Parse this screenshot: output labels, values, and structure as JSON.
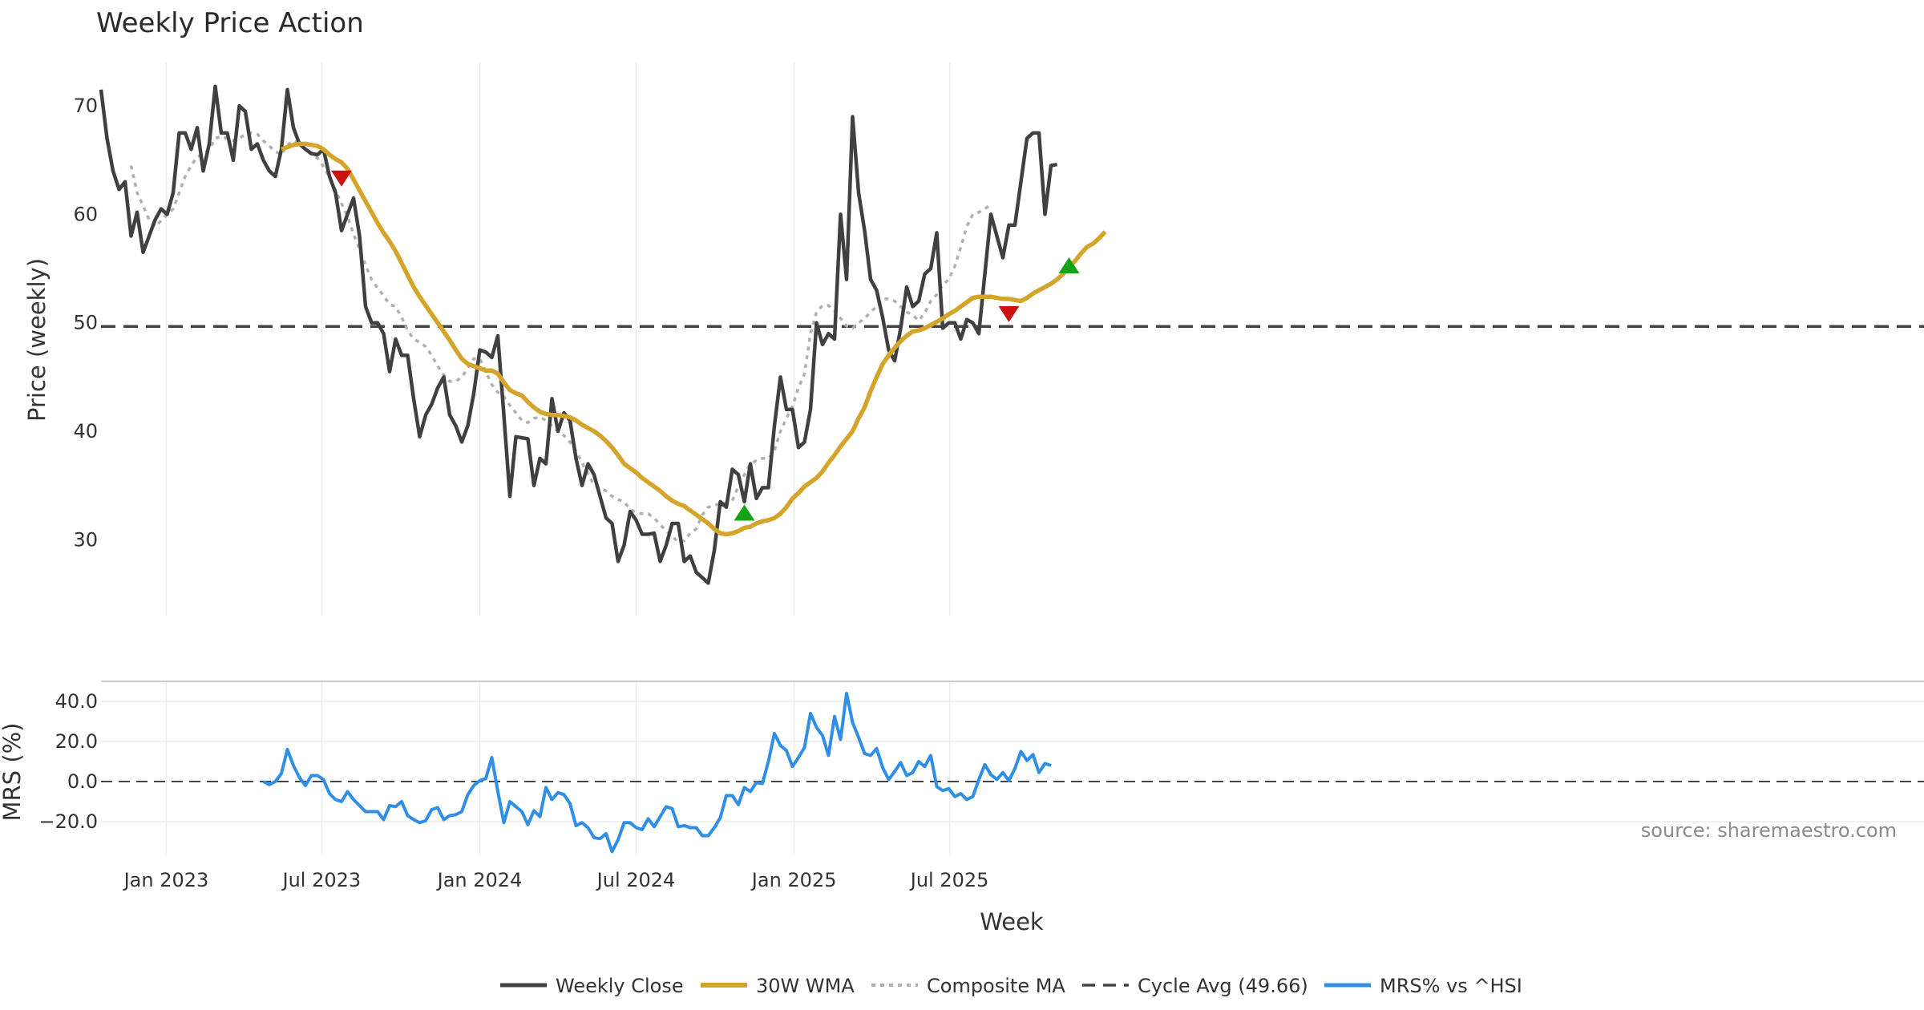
{
  "chart_data": {
    "type": "line",
    "title": "Weekly Price Action",
    "xlabel": "Week",
    "x_ticks": [
      "Jan 2023",
      "Jul 2023",
      "Jan 2024",
      "Jul 2024",
      "Jan 2025",
      "Jul 2025"
    ],
    "colors": {
      "close": "#404040",
      "wma": "#d4a52a",
      "composite": "#b0b0b0",
      "cycle": "#444444",
      "mrs": "#2f8fe6",
      "buy_marker": "#17a317",
      "sell_marker": "#cc1111"
    },
    "price_panel": {
      "ylabel": "Price (weekly)",
      "ylim": [
        23,
        74
      ],
      "yticks": [
        30,
        40,
        50,
        60,
        70
      ],
      "ytick_labels": [
        "30",
        "40",
        "50",
        "60",
        "70"
      ],
      "x_start": "2022-10-17",
      "weekly_close": [
        71.5,
        67.0,
        64.0,
        62.3,
        63.0,
        58.0,
        60.2,
        56.5,
        58.0,
        59.5,
        60.5,
        60.0,
        62.0,
        67.5,
        67.5,
        66.0,
        68.0,
        64.0,
        66.5,
        71.8,
        67.5,
        67.5,
        65.0,
        70.0,
        69.5,
        66.0,
        66.5,
        65.0,
        64.0,
        63.5,
        66.0,
        71.5,
        68.0,
        66.5,
        66.0,
        65.6,
        65.5,
        66.0,
        63.5,
        62.0,
        58.5,
        60.0,
        61.5,
        58.0,
        51.5,
        50.0,
        50.0,
        49.0,
        45.5,
        48.5,
        47.0,
        47.0,
        43.0,
        39.5,
        41.5,
        42.5,
        44.0,
        45.0,
        41.5,
        40.5,
        39.0,
        40.5,
        43.5,
        47.5,
        47.3,
        46.8,
        48.8,
        41.5,
        34.0,
        39.5,
        39.4,
        39.3,
        35.0,
        37.5,
        37.0,
        43.0,
        40.0,
        41.7,
        41.0,
        37.5,
        35.0,
        37.0,
        36.0,
        34.0,
        32.0,
        31.5,
        28.0,
        29.5,
        32.6,
        31.8,
        30.5,
        30.5,
        30.6,
        28.0,
        29.5,
        31.5,
        31.5,
        28.0,
        28.5,
        27.0,
        26.5,
        26.0,
        29.0,
        33.5,
        33.0,
        36.5,
        36.0,
        33.5,
        37.0,
        33.8,
        34.8,
        34.8,
        40.5,
        45.0,
        42.0,
        42.0,
        38.5,
        39.0,
        42.0,
        50.0,
        48.0,
        49.0,
        48.5,
        60.0,
        54.0,
        69.0,
        62.0,
        58.5,
        54.0,
        53.0,
        50.5,
        47.5,
        46.5,
        49.5,
        53.3,
        51.5,
        52.0,
        54.5,
        55.0,
        58.3,
        49.5,
        50.0,
        50.0,
        48.5,
        50.3,
        50.0,
        49.0,
        54.5,
        60.0,
        58.0,
        56.0,
        59.0,
        59.0,
        63.0,
        67.0,
        67.5,
        67.5,
        60.0,
        64.5,
        64.6
      ],
      "composite_ma_start_index": 5,
      "composite_ma": [
        64.5,
        62.0,
        60.8,
        59.5,
        58.9,
        59.4,
        60.0,
        60.5,
        62.0,
        63.5,
        64.5,
        65.3,
        65.5,
        66.0,
        67.0,
        67.2,
        67.0,
        66.8,
        67.0,
        67.4,
        67.5,
        67.4,
        66.8,
        66.3,
        65.8,
        65.5,
        66.4,
        66.8,
        66.5,
        66.0,
        65.5,
        65.2,
        64.4,
        63.4,
        62.2,
        61.0,
        59.8,
        58.2,
        56.8,
        55.3,
        54.0,
        53.2,
        52.5,
        51.7,
        51.5,
        50.5,
        49.3,
        48.5,
        48.2,
        47.8,
        47.0,
        46.0,
        45.2,
        44.6,
        44.6,
        45.0,
        45.8,
        46.7,
        46.7,
        45.5,
        44.3,
        43.6,
        43.2,
        42.4,
        41.7,
        41.0,
        40.8,
        41.2,
        41.3,
        41.0,
        40.5,
        40.0,
        39.6,
        39.0,
        38.2,
        37.1,
        36.1,
        35.0,
        34.8,
        34.5,
        34.0,
        33.7,
        33.5,
        32.8,
        32.5,
        32.4,
        32.4,
        32.0,
        31.4,
        30.8,
        30.3,
        29.8,
        29.9,
        30.6,
        31.0,
        32.3,
        33.0,
        33.2,
        33.3,
        33.4,
        33.6,
        34.9,
        36.0,
        37.0,
        37.3,
        37.5,
        37.5,
        38.2,
        40.0,
        41.2,
        42.3,
        44.0,
        45.3,
        49.0,
        51.0,
        51.6,
        51.6,
        51.1,
        50.4,
        49.7,
        49.5,
        50.0,
        50.4,
        51.0,
        51.5,
        52.2,
        52.2,
        52.0,
        51.5,
        51.0,
        50.7,
        50.2,
        50.9,
        52.0,
        52.6,
        53.5,
        54.0,
        55.2,
        57.0,
        58.9,
        60.0,
        60.2,
        60.5,
        60.9
      ]
    },
    "wma_30w": {
      "start_index": 30,
      "values": [
        66.0,
        66.2,
        66.4,
        66.5,
        66.5,
        66.4,
        66.3,
        66.0,
        65.5,
        65.1,
        64.8,
        64.2,
        63.2,
        62.2,
        61.2,
        60.2,
        59.2,
        58.3,
        57.5,
        56.6,
        55.5,
        54.4,
        53.3,
        52.4,
        51.6,
        50.8,
        50.0,
        49.2,
        48.4,
        47.5,
        46.7,
        46.2,
        46.0,
        45.8,
        45.6,
        45.6,
        45.3,
        44.5,
        43.8,
        43.5,
        43.3,
        42.7,
        42.2,
        41.8,
        41.6,
        41.5,
        41.5,
        41.4,
        41.3,
        41.0,
        40.6,
        40.3,
        40.0,
        39.6,
        39.1,
        38.5,
        37.8,
        37.0,
        36.6,
        36.2,
        35.7,
        35.3,
        34.9,
        34.5,
        34.0,
        33.6,
        33.3,
        33.1,
        32.7,
        32.3,
        31.9,
        31.5,
        31.0,
        30.6,
        30.5,
        30.6,
        30.8,
        31.1,
        31.2,
        31.5,
        31.7,
        31.8,
        32.0,
        32.4,
        33.0,
        33.8,
        34.3,
        34.9,
        35.3,
        35.7,
        36.3,
        37.1,
        37.8,
        38.6,
        39.3,
        40.0,
        41.2,
        42.2,
        43.7,
        45.0,
        46.2,
        47.0,
        47.7,
        48.3,
        48.8,
        49.2,
        49.3,
        49.5,
        49.8,
        50.1,
        50.4,
        50.8,
        51.1,
        51.5,
        51.9,
        52.3,
        52.4,
        52.4,
        52.4,
        52.3,
        52.2,
        52.2,
        52.1,
        52.0,
        52.3,
        52.7,
        53.0,
        53.3,
        53.6,
        54.0,
        54.5,
        55.1,
        55.7,
        56.4,
        57.0,
        57.3,
        57.8,
        58.4
      ]
    },
    "cycle_avg": {
      "value": 49.66,
      "label": "Cycle Avg (49.66)"
    },
    "markers": [
      {
        "type": "sell",
        "index": 40,
        "price": 63.3
      },
      {
        "type": "buy",
        "index": 107,
        "price": 32.5
      },
      {
        "type": "sell",
        "index": 151,
        "price": 50.8
      },
      {
        "type": "buy",
        "index": 161,
        "price": 55.3
      }
    ],
    "mrs_panel": {
      "ylabel": "MRS (%)",
      "ylim": [
        -36,
        50
      ],
      "yticks": [
        -20,
        0,
        20,
        40
      ],
      "ytick_labels": [
        "−20.0",
        "0.0",
        "20.0",
        "40.0"
      ],
      "start_index": 27,
      "values": [
        0.0,
        -1.5,
        0.0,
        4.0,
        16.0,
        8.0,
        2.0,
        -2.0,
        3.0,
        3.0,
        1.0,
        -6.0,
        -9.0,
        -10.0,
        -5.0,
        -9.0,
        -12.0,
        -15.0,
        -15.0,
        -15.0,
        -19.0,
        -12.0,
        -12.5,
        -10.0,
        -17.0,
        -19.0,
        -20.5,
        -19.5,
        -14.0,
        -13.0,
        -19.0,
        -17.0,
        -16.5,
        -15.0,
        -6.5,
        -2.0,
        0.5,
        1.5,
        12.0,
        -5.0,
        -20.5,
        -10.0,
        -12.5,
        -15.0,
        -21.5,
        -14.5,
        -17.5,
        -3.0,
        -9.0,
        -5.5,
        -6.5,
        -11.0,
        -22.0,
        -20.5,
        -23.0,
        -28.0,
        -28.5,
        -26.0,
        -35.0,
        -29.0,
        -20.5,
        -20.5,
        -23.0,
        -24.0,
        -18.5,
        -22.5,
        -17.5,
        -12.5,
        -13.5,
        -22.5,
        -22.0,
        -23.0,
        -23.0,
        -27.0,
        -27.0,
        -23.0,
        -18.0,
        -7.0,
        -7.0,
        -11.5,
        -3.0,
        -5.0,
        -0.5,
        -1.0,
        10.0,
        24.0,
        18.0,
        15.5,
        7.5,
        12.0,
        17.0,
        34.0,
        27.0,
        23.0,
        13.0,
        32.5,
        21.0,
        44.0,
        29.5,
        22.0,
        14.0,
        13.0,
        16.5,
        7.0,
        1.0,
        5.0,
        9.5,
        3.0,
        4.5,
        10.0,
        7.5,
        13.0,
        -2.5,
        -4.5,
        -3.5,
        -7.5,
        -6.0,
        -9.0,
        -7.5,
        1.0,
        8.5,
        3.5,
        1.0,
        4.5,
        0.5,
        6.5,
        15.0,
        10.5,
        13.5,
        4.5,
        9.0,
        8.0
      ]
    },
    "source": "source: sharemaestro.com",
    "legend": [
      {
        "key": "close",
        "label": "Weekly Close"
      },
      {
        "key": "wma",
        "label": "30W WMA"
      },
      {
        "key": "composite",
        "label": "Composite MA"
      },
      {
        "key": "cycle",
        "label": "Cycle Avg (49.66)"
      },
      {
        "key": "mrs",
        "label": "MRS% vs ^HSI"
      }
    ]
  }
}
